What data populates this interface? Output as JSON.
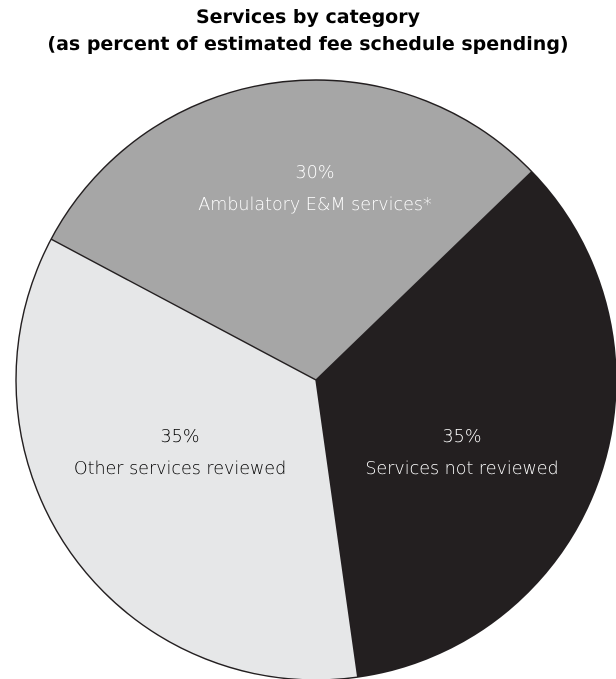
{
  "chart_data": {
    "type": "pie",
    "title": "Services by category",
    "subtitle": "(as percent of estimated fee schedule spending)",
    "slices": [
      {
        "value_label": "30%",
        "label": "Ambulatory E&M services*",
        "value": 30,
        "color": "#a6a6a6",
        "text_color": "#ffffff"
      },
      {
        "value_label": "35%",
        "label": "Services not reviewed",
        "value": 35,
        "color": "#231f20",
        "text_color": "#ffffff"
      },
      {
        "value_label": "35%",
        "label": "Other services reviewed",
        "value": 35,
        "color": "#e6e7e8",
        "text_color": "#000000"
      }
    ]
  }
}
